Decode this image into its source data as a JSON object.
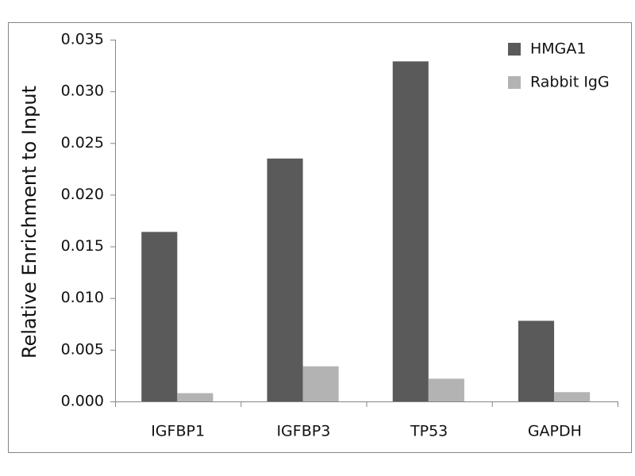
{
  "chart_data": {
    "type": "bar",
    "y_label": "Relative Enrichment to Input",
    "categories": [
      "IGFBP1",
      "IGFBP3",
      "TP53",
      "GAPDH"
    ],
    "series": [
      {
        "name": "HMGA1",
        "color": "#5a5a5a",
        "values": [
          0.0164,
          0.0235,
          0.0329,
          0.0078
        ]
      },
      {
        "name": "Rabbit IgG",
        "color": "#b3b3b3",
        "values": [
          0.0008,
          0.0034,
          0.0022,
          0.0009
        ]
      }
    ],
    "ylim": [
      0,
      0.035
    ],
    "yticks": [
      {
        "value": 0,
        "label": "0.000"
      },
      0.005,
      {
        "value": 0.01,
        "label": "0.010"
      },
      0.015,
      {
        "value": 0.02,
        "label": "0.020"
      },
      0.025,
      {
        "value": 0.03,
        "label": "0.030"
      },
      0.035
    ],
    "grid": false,
    "legend": "upper right"
  }
}
